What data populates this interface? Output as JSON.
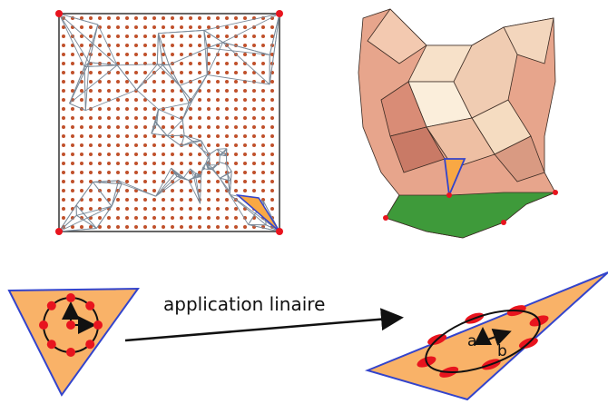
{
  "caption": "application linaire",
  "axis_a": "a",
  "axis_b": "b"
}
